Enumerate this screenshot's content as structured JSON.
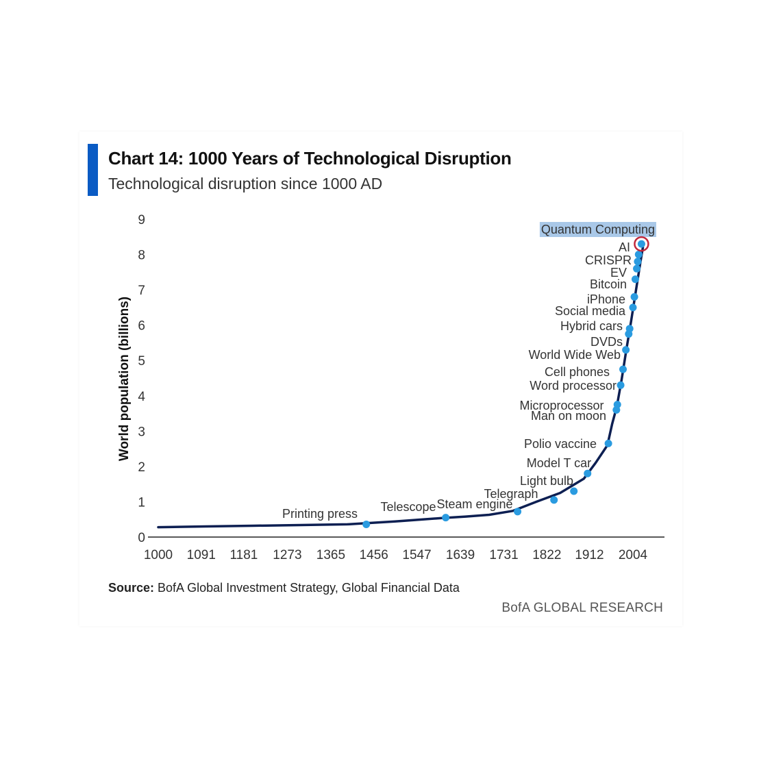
{
  "header": {
    "title": "Chart 14: 1000 Years of Technological Disruption",
    "subtitle": "Technological disruption since 1000 AD"
  },
  "footer": {
    "source_label": "Source:",
    "source_text": " BofA Global Investment Strategy, Global Financial Data",
    "brand": "BofA GLOBAL RESEARCH"
  },
  "colors": {
    "accent": "#0a5bc4",
    "line": "#0d1f52",
    "point": "#2a9be0",
    "highlight_ring": "#c0283c",
    "highlight_bg": "#a9c8e8"
  },
  "chart_data": {
    "type": "line",
    "title": "Chart 14: 1000 Years of Technological Disruption",
    "subtitle": "Technological disruption since 1000 AD",
    "xlabel": "",
    "ylabel": "World population (billions)",
    "xlim": [
      1000,
      2030
    ],
    "ylim": [
      0,
      9
    ],
    "x_ticks": [
      "1000",
      "1091",
      "1181",
      "1273",
      "1365",
      "1456",
      "1547",
      "1639",
      "1731",
      "1822",
      "1912",
      "2004"
    ],
    "y_ticks": [
      "0",
      "1",
      "2",
      "3",
      "4",
      "5",
      "6",
      "7",
      "8",
      "9"
    ],
    "series": [
      {
        "name": "World population",
        "x": [
          1000,
          1100,
          1200,
          1300,
          1400,
          1500,
          1600,
          1650,
          1700,
          1750,
          1800,
          1850,
          1900,
          1925,
          1950,
          1960,
          1970,
          1980,
          1990,
          2000,
          2010,
          2020,
          2025
        ],
        "y": [
          0.28,
          0.3,
          0.32,
          0.34,
          0.36,
          0.44,
          0.54,
          0.58,
          0.63,
          0.74,
          1.0,
          1.25,
          1.65,
          2.1,
          2.6,
          3.2,
          3.7,
          4.45,
          5.3,
          6.1,
          6.95,
          7.8,
          8.2
        ]
      }
    ],
    "events": [
      {
        "label": "Printing press",
        "x": 1440,
        "y": 0.36
      },
      {
        "label": "Telescope",
        "x": 1608,
        "y": 0.55
      },
      {
        "label": "Steam engine",
        "x": 1760,
        "y": 0.72
      },
      {
        "label": "Telegraph",
        "x": 1837,
        "y": 1.05
      },
      {
        "label": "Light bulb",
        "x": 1879,
        "y": 1.3
      },
      {
        "label": "Model T car",
        "x": 1908,
        "y": 1.8
      },
      {
        "label": "Polio vaccine",
        "x": 1952,
        "y": 2.65
      },
      {
        "label": "Man on moon",
        "x": 1969,
        "y": 3.6
      },
      {
        "label": "Microprocessor",
        "x": 1971,
        "y": 3.75
      },
      {
        "label": "Word processor",
        "x": 1978,
        "y": 4.3
      },
      {
        "label": "Cell phones",
        "x": 1983,
        "y": 4.75
      },
      {
        "label": "World Wide Web",
        "x": 1989,
        "y": 5.3
      },
      {
        "label": "DVDs",
        "x": 1995,
        "y": 5.75
      },
      {
        "label": "Hybrid cars",
        "x": 1997,
        "y": 5.9
      },
      {
        "label": "Social media",
        "x": 2004,
        "y": 6.5
      },
      {
        "label": "iPhone",
        "x": 2007,
        "y": 6.8
      },
      {
        "label": "Bitcoin",
        "x": 2009,
        "y": 7.3
      },
      {
        "label": "EV",
        "x": 2012,
        "y": 7.6
      },
      {
        "label": "CRISPR",
        "x": 2014,
        "y": 7.8
      },
      {
        "label": "AI",
        "x": 2016,
        "y": 8.0
      },
      {
        "label": "Quantum Computing",
        "x": 2022,
        "y": 8.3,
        "highlight": true
      }
    ]
  }
}
